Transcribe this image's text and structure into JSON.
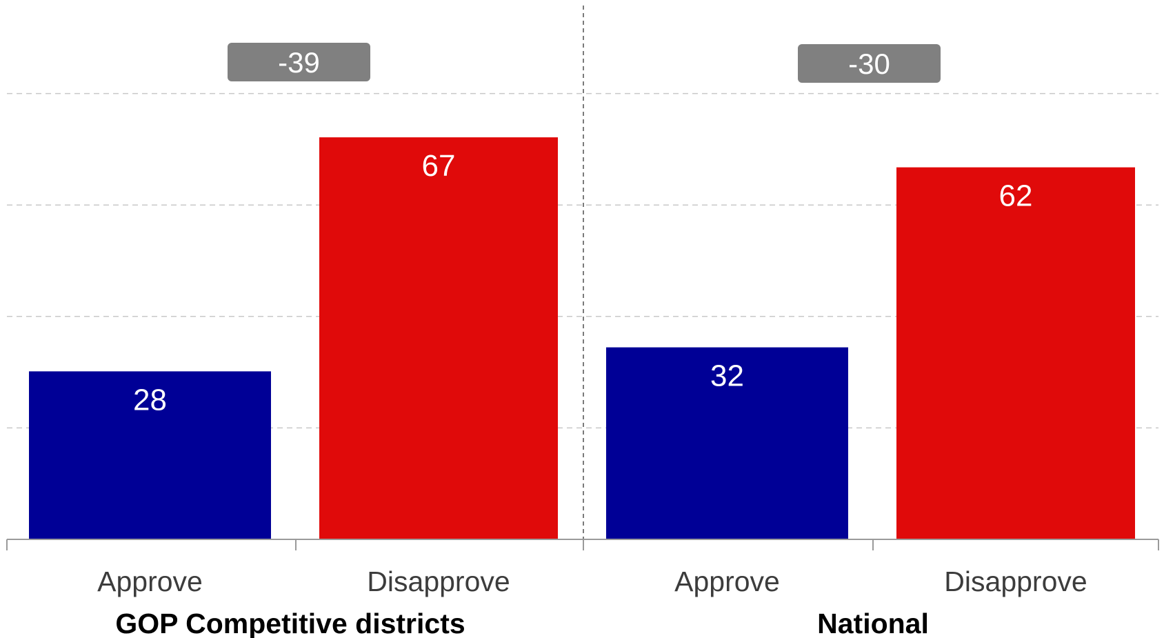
{
  "chart_data": {
    "type": "bar",
    "groups": [
      {
        "name": "GOP Competitive districts",
        "categories": [
          "Approve",
          "Disapprove"
        ],
        "values": [
          28,
          67
        ],
        "colors": [
          "#000096",
          "#e00a0a"
        ],
        "difference": "-39"
      },
      {
        "name": "National",
        "categories": [
          "Approve",
          "Disapprove"
        ],
        "values": [
          32,
          62
        ],
        "colors": [
          "#000096",
          "#e00a0a"
        ],
        "difference": "-30"
      }
    ],
    "ylim": [
      0,
      80
    ],
    "grid": true,
    "difference_badge_color": "#808080",
    "title": "",
    "xlabel": "",
    "ylabel": ""
  }
}
